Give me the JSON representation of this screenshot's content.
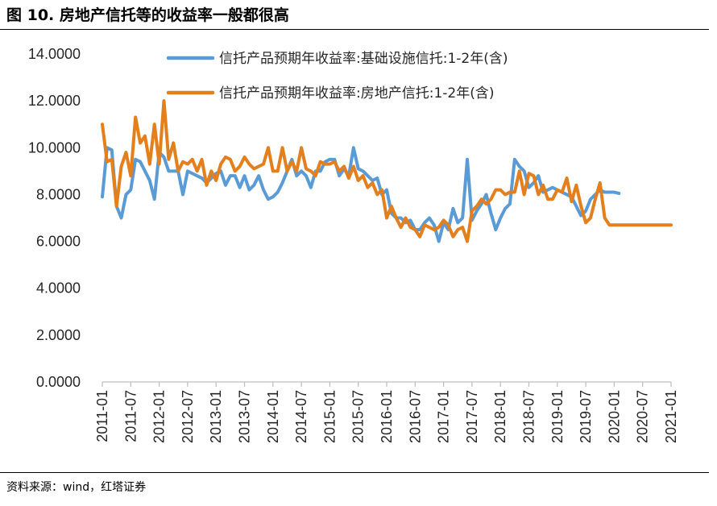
{
  "figure": {
    "title": "图 10. 房地产信托等的收益率一般都很高",
    "source": "资料来源：wind，红塔证券"
  },
  "colors": {
    "infrastructure": "#5b9bd5",
    "real_estate": "#e37f1c",
    "axis": "#bfbfbf"
  },
  "chart_data": {
    "type": "line",
    "title": "",
    "xlabel": "",
    "ylabel": "",
    "ylim": [
      0,
      14
    ],
    "yticks": [
      "0.0000",
      "2.0000",
      "4.0000",
      "6.0000",
      "8.0000",
      "10.0000",
      "12.0000",
      "14.0000"
    ],
    "xticks": [
      "2011-01",
      "2011-07",
      "2012-01",
      "2012-07",
      "2013-01",
      "2013-07",
      "2014-01",
      "2014-07",
      "2015-01",
      "2015-07",
      "2016-01",
      "2016-07",
      "2017-01",
      "2017-07",
      "2018-01",
      "2018-07",
      "2019-01",
      "2019-07",
      "2020-01",
      "2020-07",
      "2021-01"
    ],
    "grid": false,
    "legend_position": "top-right",
    "series": [
      {
        "name": "信托产品预期年收益率:基础设施信托:1-2年(含)",
        "color": "#5b9bd5",
        "values": [
          7.9,
          10.0,
          9.9,
          7.5,
          7.0,
          8.0,
          8.2,
          9.5,
          9.4,
          9.0,
          8.6,
          7.8,
          9.8,
          9.6,
          9.0,
          9.0,
          9.0,
          8.0,
          9.0,
          8.9,
          8.8,
          8.7,
          8.5,
          8.7,
          8.9,
          9.0,
          8.4,
          8.8,
          8.8,
          8.3,
          8.8,
          8.2,
          8.4,
          8.8,
          8.2,
          7.8,
          7.9,
          8.1,
          8.5,
          9.0,
          9.5,
          8.8,
          9.0,
          8.8,
          8.3,
          9.0,
          9.0,
          9.4,
          9.5,
          9.5,
          8.8,
          9.1,
          8.8,
          10.0,
          9.1,
          9.0,
          8.8,
          8.6,
          8.7,
          8.0,
          8.2,
          7.2,
          7.0,
          7.0,
          6.8,
          6.9,
          6.5,
          6.5,
          6.8,
          7.0,
          6.7,
          6.0,
          6.8,
          6.5,
          7.4,
          6.8,
          7.0,
          9.5,
          6.9,
          7.3,
          7.6,
          8.0,
          7.2,
          6.5,
          7.0,
          7.4,
          7.6,
          9.5,
          9.2,
          9.0,
          8.3,
          8.5,
          8.8,
          8.1,
          8.2,
          8.3,
          8.2,
          8.1,
          8.0,
          7.9,
          7.5,
          7.1,
          7.3,
          7.8,
          8.0,
          8.2,
          8.1,
          8.1,
          8.1,
          8.05
        ]
      },
      {
        "name": "信托产品预期年收益率:房地产信托:1-2年(含)",
        "color": "#e37f1c",
        "values": [
          11.0,
          9.4,
          9.5,
          7.5,
          9.2,
          9.8,
          8.8,
          11.3,
          10.2,
          10.5,
          9.3,
          11.0,
          9.3,
          12.0,
          9.5,
          10.2,
          9.0,
          9.4,
          9.3,
          9.5,
          9.0,
          9.5,
          8.4,
          9.0,
          8.6,
          9.3,
          9.6,
          9.5,
          9.0,
          9.2,
          9.6,
          9.3,
          9.1,
          9.2,
          9.3,
          10.0,
          9.0,
          9.0,
          10.0,
          9.0,
          9.4,
          9.0,
          10.0,
          9.1,
          9.0,
          8.8,
          9.4,
          9.3,
          9.3,
          9.4,
          9.0,
          9.2,
          8.7,
          9.2,
          8.6,
          8.8,
          8.3,
          8.5,
          8.0,
          8.2,
          7.0,
          7.5,
          7.0,
          6.6,
          7.0,
          6.6,
          6.5,
          6.2,
          6.7,
          6.6,
          6.5,
          6.6,
          6.9,
          6.7,
          6.2,
          6.5,
          6.6,
          6.0,
          7.3,
          7.5,
          7.8,
          7.6,
          7.8,
          8.2,
          8.2,
          8.0,
          8.1,
          8.1,
          9.0,
          8.0,
          8.9,
          8.8,
          8.0,
          8.4,
          7.8,
          7.8,
          8.2,
          8.1,
          8.7,
          7.7,
          8.4,
          7.5,
          6.8,
          7.0,
          7.8,
          8.5,
          7.0,
          6.7,
          6.7,
          6.7,
          6.7,
          6.7,
          6.7,
          6.7,
          6.7,
          6.7,
          6.7,
          6.7,
          6.7,
          6.7,
          6.7
        ]
      }
    ]
  }
}
